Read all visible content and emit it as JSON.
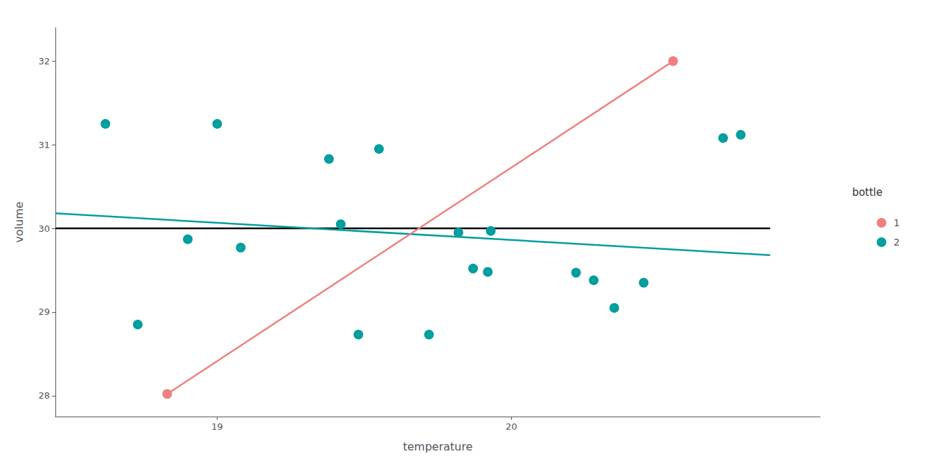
{
  "chart_data": {
    "type": "scatter",
    "title": "",
    "xlabel": "temperature",
    "ylabel": "volume",
    "xlim": [
      18.45,
      21.05
    ],
    "ylim": [
      27.75,
      32.4
    ],
    "xticks": [
      19,
      20
    ],
    "yticks": [
      28,
      29,
      30,
      31,
      32
    ],
    "grid": false,
    "legend": "right",
    "legend_title": "bottle",
    "series": [
      {
        "type": "line",
        "color": "#000000",
        "line_style": "solid",
        "x": [
          18.45,
          20.88
        ],
        "values": [
          30.0,
          30.0
        ]
      },
      {
        "type": "line",
        "color": "#009E9E",
        "line_style": "solid",
        "x": [
          18.45,
          20.88
        ],
        "values": [
          30.18,
          29.68
        ]
      },
      {
        "type": "line",
        "color": "#F08080",
        "line_style": "solid",
        "x": [
          18.83,
          20.55
        ],
        "values": [
          28.02,
          32.0
        ]
      },
      {
        "type": "scatter",
        "name": "1",
        "color": "#F08080",
        "marker": "circle",
        "x": [
          18.83,
          20.55
        ],
        "values": [
          28.02,
          32.0
        ]
      },
      {
        "type": "scatter",
        "name": "2",
        "color": "#009E9E",
        "marker": "circle",
        "x": [
          18.62,
          18.73,
          18.9,
          19.0,
          19.08,
          19.38,
          19.42,
          19.48,
          19.55,
          19.72,
          19.82,
          19.87,
          19.92,
          19.93,
          20.22,
          20.28,
          20.35,
          20.45,
          20.72,
          20.78
        ],
        "values": [
          31.25,
          28.85,
          29.87,
          31.25,
          29.77,
          30.83,
          30.05,
          28.73,
          30.95,
          28.73,
          29.95,
          29.52,
          29.48,
          29.97,
          29.47,
          29.38,
          29.05,
          29.35,
          31.08,
          31.12
        ]
      }
    ]
  }
}
